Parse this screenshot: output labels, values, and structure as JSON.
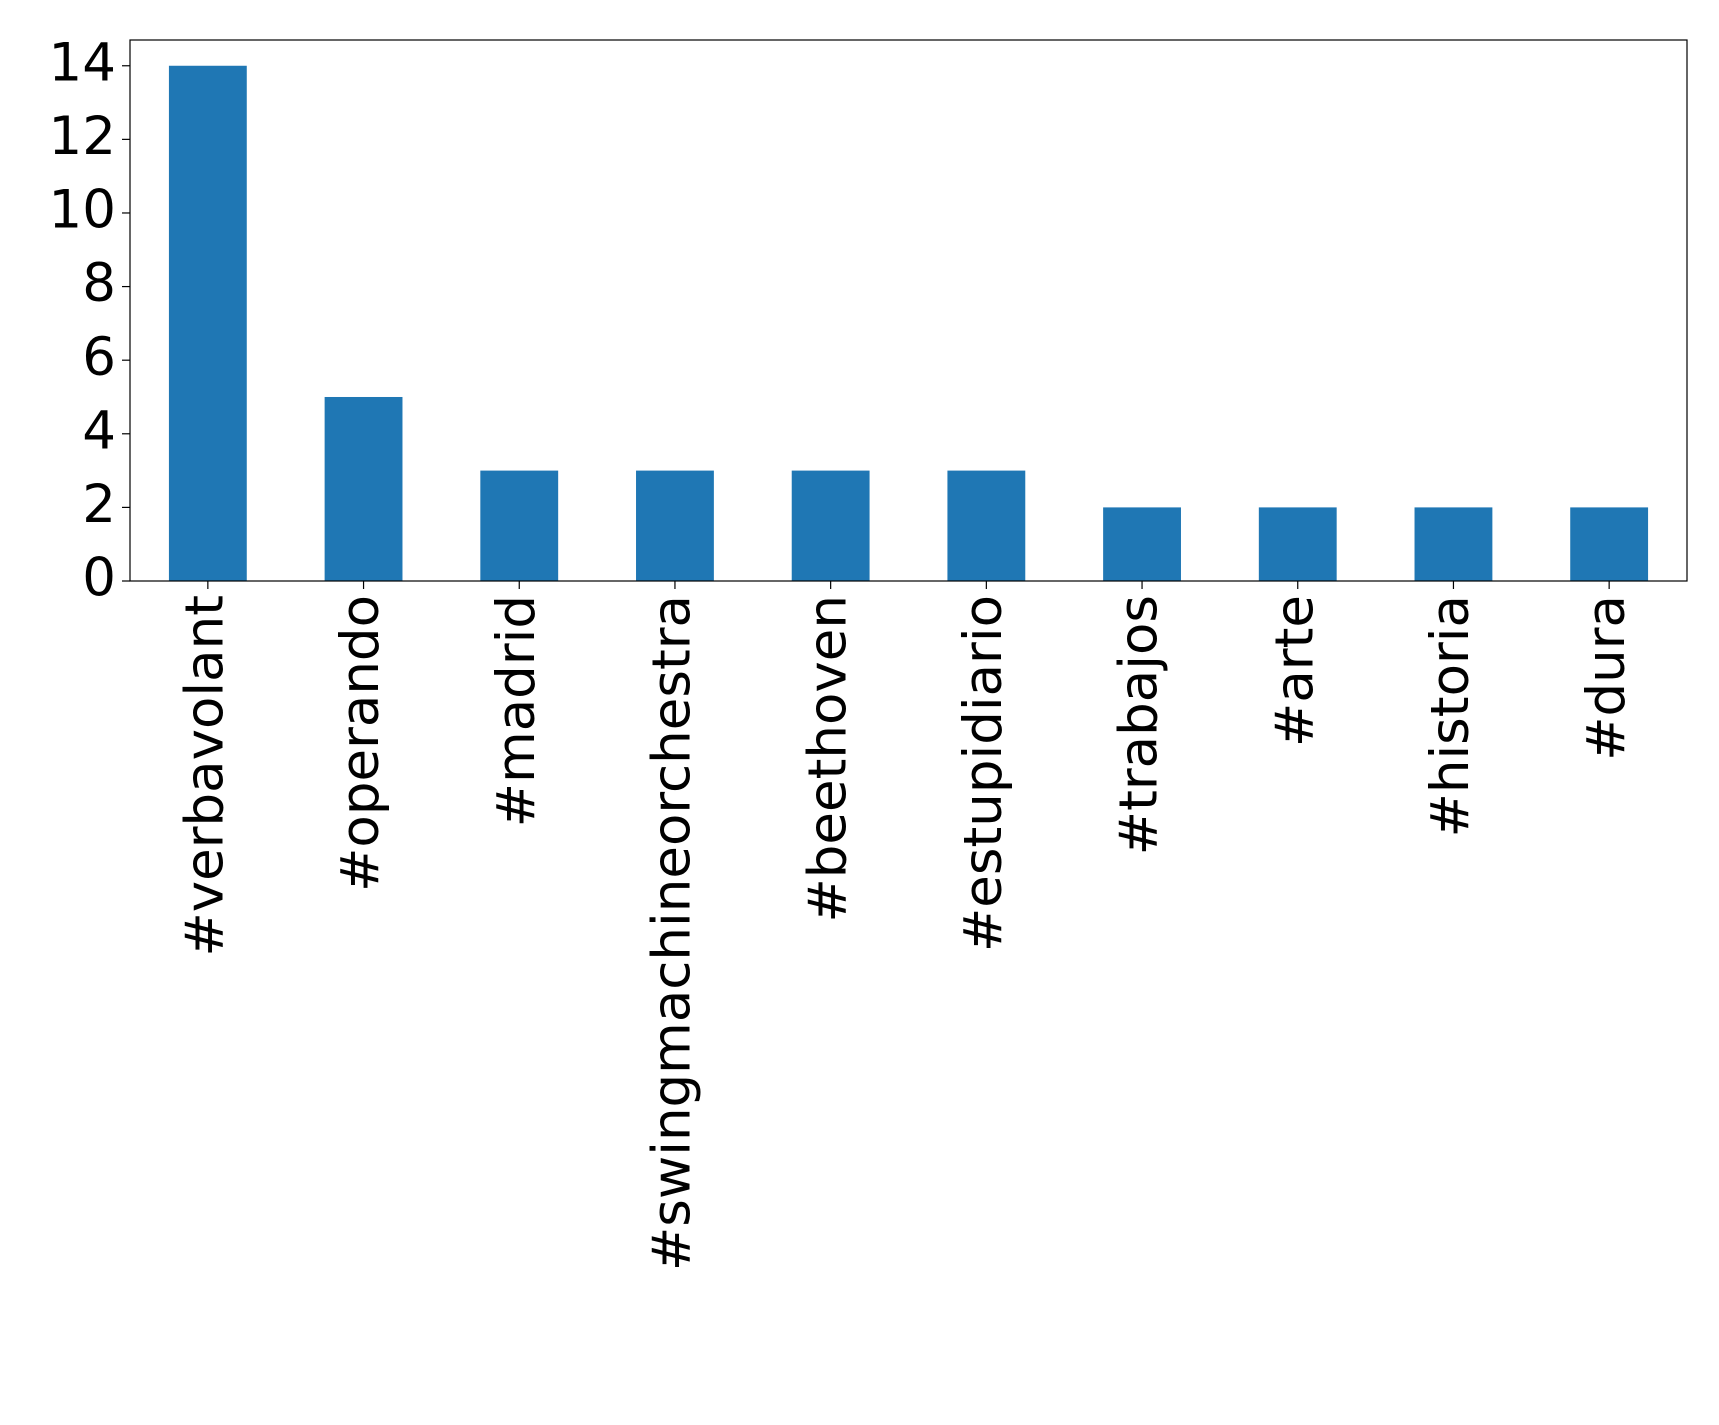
{
  "chart_data": {
    "type": "bar",
    "categories": [
      "#verbavolant",
      "#operando",
      "#madrid",
      "#swingmachineorchestra",
      "#beethoven",
      "#estupidiario",
      "#trabajos",
      "#arte",
      "#historia",
      "#dura"
    ],
    "values": [
      14,
      5,
      3,
      3,
      3,
      3,
      2,
      2,
      2,
      2
    ],
    "color": "#1f77b4",
    "ylim": [
      0,
      14.7
    ],
    "yticks": [
      0,
      2,
      4,
      6,
      8,
      10,
      12,
      14
    ],
    "grid": false
  }
}
